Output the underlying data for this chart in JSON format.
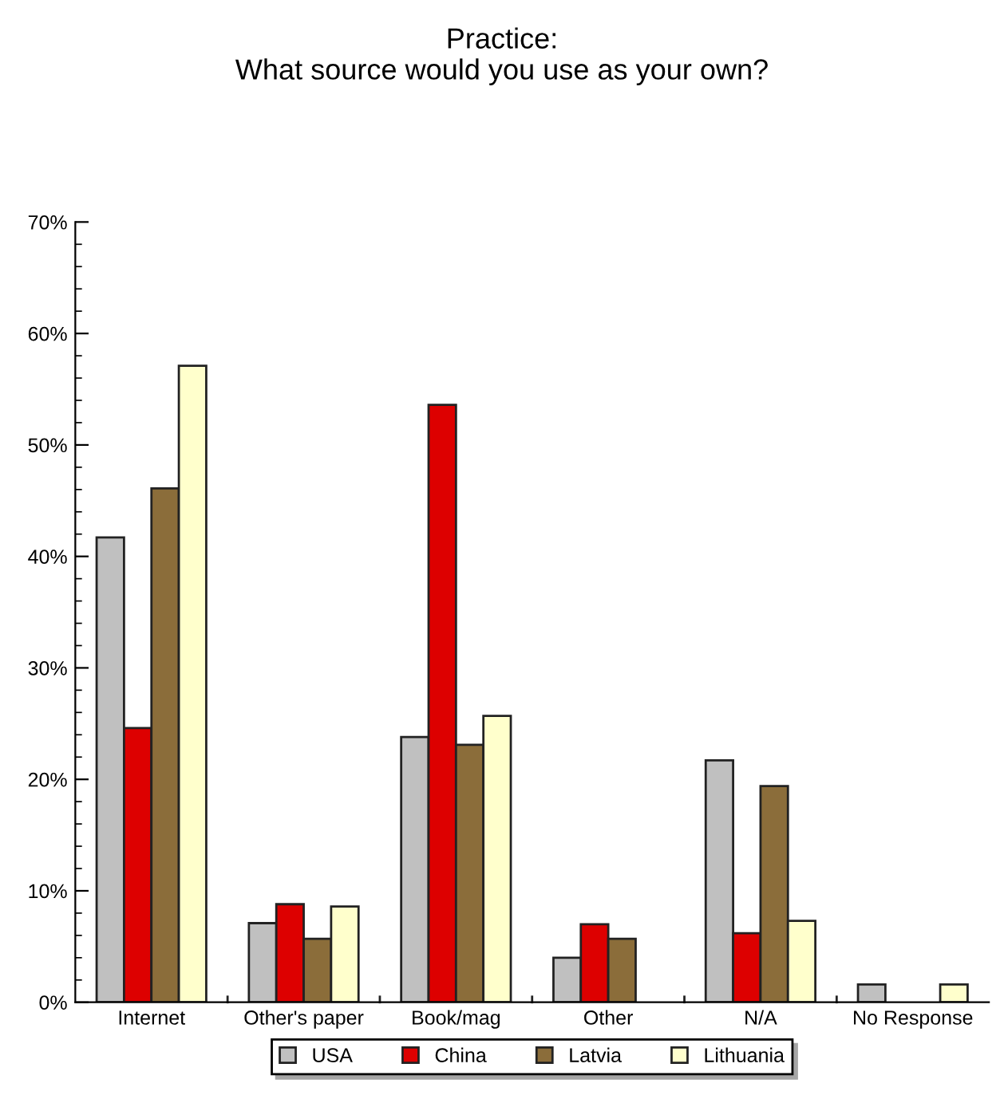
{
  "chart_data": {
    "type": "bar",
    "title": "Practice:\nWhat source would you use as your own?",
    "categories": [
      "Internet",
      "Other's paper",
      "Book/mag",
      "Other",
      "N/A",
      "No Response"
    ],
    "series": [
      {
        "name": "USA",
        "color": "#c0c0c0",
        "values": [
          41.7,
          7.1,
          23.8,
          4.0,
          21.7,
          1.6
        ]
      },
      {
        "name": "China",
        "color": "#dd0000",
        "values": [
          24.6,
          8.8,
          53.6,
          7.0,
          6.2,
          null
        ]
      },
      {
        "name": "Latvia",
        "color": "#8b6d3a",
        "values": [
          46.1,
          5.7,
          23.1,
          5.7,
          19.4,
          null
        ]
      },
      {
        "name": "Lithuania",
        "color": "#ffffcc",
        "values": [
          57.1,
          8.6,
          25.7,
          null,
          7.3,
          1.6
        ]
      }
    ],
    "ylim": [
      0,
      70
    ],
    "yticks": [
      {
        "value": 0,
        "label": "0%"
      },
      {
        "value": 2,
        "label": null
      },
      {
        "value": 4,
        "label": null
      },
      {
        "value": 6,
        "label": null
      },
      {
        "value": 8,
        "label": null
      },
      {
        "value": 10,
        "label": "10%"
      },
      {
        "value": 12,
        "label": null
      },
      {
        "value": 14,
        "label": null
      },
      {
        "value": 16,
        "label": null
      },
      {
        "value": 18,
        "label": null
      },
      {
        "value": 20,
        "label": "20%"
      },
      {
        "value": 22,
        "label": null
      },
      {
        "value": 24,
        "label": null
      },
      {
        "value": 26,
        "label": null
      },
      {
        "value": 28,
        "label": null
      },
      {
        "value": 30,
        "label": "30%"
      },
      {
        "value": 32,
        "label": null
      },
      {
        "value": 34,
        "label": null
      },
      {
        "value": 36,
        "label": null
      },
      {
        "value": 38,
        "label": null
      },
      {
        "value": 40,
        "label": "40%"
      },
      {
        "value": 42,
        "label": null
      },
      {
        "value": 44,
        "label": null
      },
      {
        "value": 46,
        "label": null
      },
      {
        "value": 48,
        "label": null
      },
      {
        "value": 50,
        "label": "50%"
      },
      {
        "value": 52,
        "label": null
      },
      {
        "value": 54,
        "label": null
      },
      {
        "value": 56,
        "label": null
      },
      {
        "value": 58,
        "label": null
      },
      {
        "value": 60,
        "label": "60%"
      },
      {
        "value": 62,
        "label": null
      },
      {
        "value": 64,
        "label": null
      },
      {
        "value": 66,
        "label": null
      },
      {
        "value": 68,
        "label": null
      },
      {
        "value": 70,
        "label": "70%"
      }
    ],
    "grid": false,
    "legend": "bottom"
  }
}
